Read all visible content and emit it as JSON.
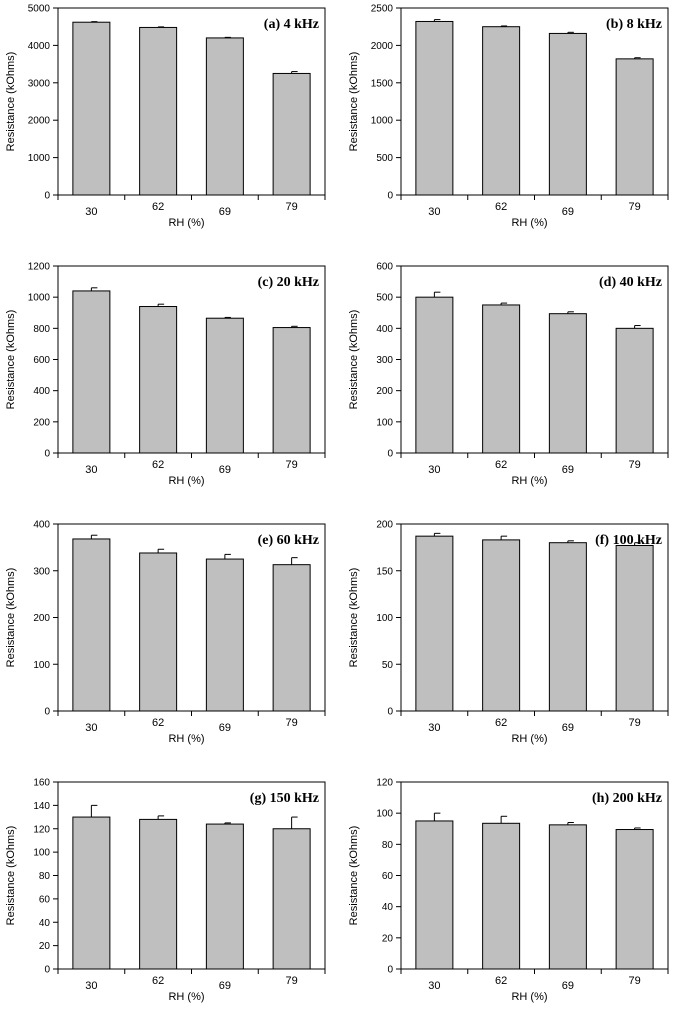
{
  "chart_data": [
    {
      "type": "bar",
      "title": "(a) 4 kHz",
      "xlabel": "RH (%)",
      "ylabel": "Resistance (kOhms)",
      "categories": [
        "30",
        "62",
        "69",
        "79"
      ],
      "values": [
        4620,
        4480,
        4200,
        3250
      ],
      "errors": [
        15,
        15,
        15,
        50
      ],
      "ylim": [
        0,
        5000
      ],
      "yticks": [
        0,
        1000,
        2000,
        3000,
        4000,
        5000
      ],
      "ytick_labels": [
        "0",
        "1000",
        "2000",
        "3000",
        "4000",
        "5000"
      ]
    },
    {
      "type": "bar",
      "title": "(b) 8 kHz",
      "xlabel": "RH (%)",
      "ylabel": "Resistance (kOhms)",
      "categories": [
        "30",
        "62",
        "69",
        "79"
      ],
      "values": [
        2320,
        2250,
        2160,
        1820
      ],
      "errors": [
        25,
        10,
        15,
        15
      ],
      "ylim": [
        0,
        2500
      ],
      "yticks": [
        0,
        500,
        1000,
        1500,
        2000,
        2500
      ],
      "ytick_labels": [
        "0",
        "500",
        "1000",
        "1500",
        "2000",
        "2500"
      ]
    },
    {
      "type": "bar",
      "title": "(c) 20 kHz",
      "xlabel": "RH (%)",
      "ylabel": "Resistance (kOhms)",
      "categories": [
        "30",
        "62",
        "69",
        "79"
      ],
      "values": [
        1040,
        940,
        865,
        805
      ],
      "errors": [
        20,
        15,
        5,
        8
      ],
      "ylim": [
        0,
        1200
      ],
      "yticks": [
        0,
        200,
        400,
        600,
        800,
        1000,
        1200
      ],
      "ytick_labels": [
        "0",
        "200",
        "400",
        "600",
        "800",
        "1000",
        "1200"
      ]
    },
    {
      "type": "bar",
      "title": "(d) 40 kHz",
      "xlabel": "RH (%)",
      "ylabel": "Resistance (kOhms)",
      "categories": [
        "30",
        "62",
        "69",
        "79"
      ],
      "values": [
        500,
        475,
        447,
        400
      ],
      "errors": [
        16,
        6,
        6,
        9
      ],
      "ylim": [
        0,
        600
      ],
      "yticks": [
        0,
        100,
        200,
        300,
        400,
        500,
        600
      ],
      "ytick_labels": [
        "0",
        "100",
        "200",
        "300",
        "400",
        "500",
        "600"
      ]
    },
    {
      "type": "bar",
      "title": "(e) 60 kHz",
      "xlabel": "RH (%)",
      "ylabel": "Resistance (kOhms)",
      "categories": [
        "30",
        "62",
        "69",
        "79"
      ],
      "values": [
        368,
        338,
        325,
        313
      ],
      "errors": [
        8,
        8,
        10,
        15
      ],
      "ylim": [
        0,
        400
      ],
      "yticks": [
        0,
        100,
        200,
        300,
        400
      ],
      "ytick_labels": [
        "0",
        "100",
        "200",
        "300",
        "400"
      ]
    },
    {
      "type": "bar",
      "title": "(f) 100 kHz",
      "xlabel": "RH (%)",
      "ylabel": "Resistance (kOhms)",
      "categories": [
        "30",
        "62",
        "69",
        "79"
      ],
      "values": [
        187,
        183,
        180,
        177
      ],
      "errors": [
        3,
        4,
        2,
        3
      ],
      "ylim": [
        0,
        200
      ],
      "yticks": [
        0,
        50,
        100,
        150,
        200
      ],
      "ytick_labels": [
        "0",
        "50",
        "100",
        "150",
        "200"
      ]
    },
    {
      "type": "bar",
      "title": "(g) 150 kHz",
      "xlabel": "RH (%)",
      "ylabel": "Resistance (kOhms)",
      "categories": [
        "30",
        "62",
        "69",
        "79"
      ],
      "values": [
        130,
        128,
        124,
        120
      ],
      "errors": [
        10,
        3,
        1,
        10
      ],
      "ylim": [
        0,
        160
      ],
      "yticks": [
        0,
        20,
        40,
        60,
        80,
        100,
        120,
        140,
        160
      ],
      "ytick_labels": [
        "0",
        "20",
        "40",
        "60",
        "80",
        "100",
        "120",
        "140",
        "160"
      ]
    },
    {
      "type": "bar",
      "title": "(h) 200 kHz",
      "xlabel": "RH (%)",
      "ylabel": "Resistance (kOhms)",
      "categories": [
        "30",
        "62",
        "69",
        "79"
      ],
      "values": [
        95,
        93.5,
        92.5,
        89.5
      ],
      "errors": [
        5,
        4.5,
        1.5,
        1
      ],
      "ylim": [
        0,
        120
      ],
      "yticks": [
        0,
        20,
        40,
        60,
        80,
        100,
        120
      ],
      "ytick_labels": [
        "0",
        "20",
        "40",
        "60",
        "80",
        "100",
        "120"
      ]
    }
  ]
}
